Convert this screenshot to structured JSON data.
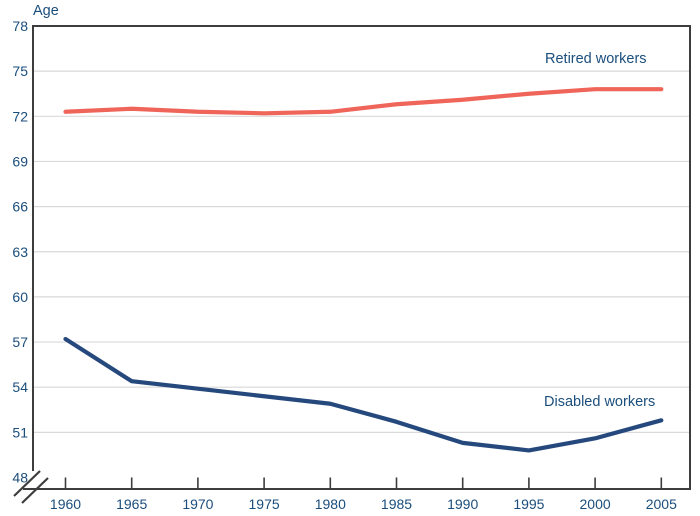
{
  "chart_data": {
    "type": "line",
    "title": "",
    "ylabel": "Age",
    "xlabel": "",
    "x": [
      1960,
      1965,
      1970,
      1975,
      1980,
      1985,
      1990,
      1995,
      2000,
      2005
    ],
    "series": [
      {
        "name": "Retired workers",
        "color": "#f0655a",
        "values": [
          72.3,
          72.5,
          72.3,
          72.2,
          72.3,
          72.8,
          73.1,
          73.5,
          73.8,
          73.8
        ]
      },
      {
        "name": "Disabled workers",
        "color": "#26497d",
        "values": [
          57.2,
          54.4,
          53.9,
          53.4,
          52.9,
          51.7,
          50.3,
          49.8,
          50.6,
          51.8
        ]
      }
    ],
    "y_ticks": [
      48,
      51,
      54,
      57,
      60,
      63,
      66,
      69,
      72,
      75,
      78
    ],
    "ylim": [
      48,
      78
    ],
    "xlim": [
      1960,
      2005
    ],
    "grid": "horizontal",
    "axis_break_at_origin": true,
    "legend_position": "inline-annotations",
    "colors": {
      "axis": "#3d3d3d",
      "grid": "#d9d9d9",
      "text": "#1b4e7c",
      "background": "#ffffff"
    }
  }
}
